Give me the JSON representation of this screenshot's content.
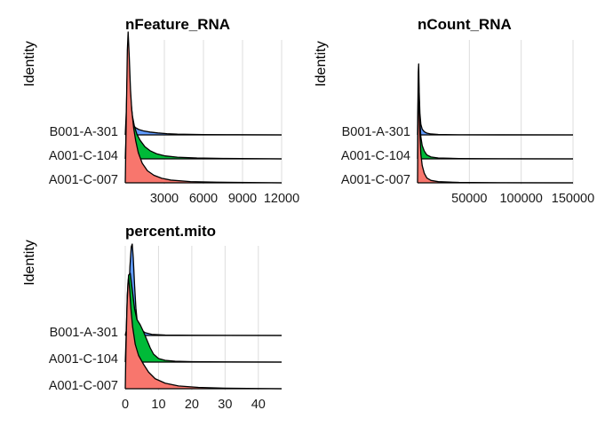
{
  "chart_data": [
    {
      "type": "ridgeline",
      "title": "nFeature_RNA",
      "ylabel": "Identity",
      "xlabel": "",
      "xlim": [
        0,
        12000
      ],
      "xticks": [
        3000,
        6000,
        9000,
        12000
      ],
      "tick_labels": [
        "3000",
        "6000",
        "9000",
        "12000"
      ],
      "grid": true,
      "categories": [
        "A001-C-007",
        "A001-C-104",
        "B001-A-301"
      ],
      "series": [
        {
          "category": "A001-C-007",
          "color": "#F8766D",
          "x": [
            0,
            80,
            160,
            220,
            300,
            400,
            500,
            650,
            800,
            1000,
            1300,
            1700,
            2200,
            2800,
            3500,
            5000,
            7000,
            9500,
            12000
          ],
          "density": [
            0,
            0.45,
            0.88,
            1.0,
            0.85,
            0.62,
            0.48,
            0.36,
            0.28,
            0.2,
            0.13,
            0.08,
            0.05,
            0.03,
            0.018,
            0.008,
            0.004,
            0.002,
            0.0
          ]
        },
        {
          "category": "A001-C-104",
          "color": "#00BA38",
          "x": [
            0,
            100,
            180,
            250,
            330,
            420,
            550,
            700,
            900,
            1150,
            1500,
            1900,
            2400,
            3000,
            4000,
            5500,
            7500,
            10000,
            12000
          ],
          "density": [
            0,
            0.4,
            0.9,
            1.0,
            0.8,
            0.58,
            0.42,
            0.32,
            0.24,
            0.18,
            0.12,
            0.08,
            0.05,
            0.03,
            0.016,
            0.008,
            0.004,
            0.002,
            0.0
          ]
        },
        {
          "category": "B001-A-301",
          "color": "#619CFF",
          "x": [
            0,
            90,
            170,
            240,
            300,
            380,
            480,
            620,
            800,
            1050,
            1400,
            1900,
            2500,
            3200,
            4000,
            6000,
            8500,
            12000
          ],
          "density": [
            0,
            0.3,
            0.8,
            1.0,
            0.55,
            0.28,
            0.16,
            0.11,
            0.08,
            0.06,
            0.045,
            0.032,
            0.022,
            0.014,
            0.008,
            0.004,
            0.002,
            0.0
          ]
        }
      ]
    },
    {
      "type": "ridgeline",
      "title": "nCount_RNA",
      "ylabel": "Identity",
      "xlabel": "",
      "xlim": [
        0,
        150000
      ],
      "xticks": [
        50000,
        100000,
        150000
      ],
      "tick_labels": [
        "50000",
        "100000",
        "150000"
      ],
      "grid": true,
      "categories": [
        "A001-C-007",
        "A001-C-104",
        "B001-A-301"
      ],
      "series": [
        {
          "category": "A001-C-007",
          "color": "#F8766D",
          "x": [
            0,
            300,
            700,
            1100,
            1600,
            2300,
            3200,
            4500,
            6500,
            9000,
            13000,
            20000,
            40000,
            80000,
            150000
          ],
          "density": [
            0,
            0.5,
            0.92,
            1.0,
            0.78,
            0.5,
            0.3,
            0.18,
            0.1,
            0.05,
            0.025,
            0.012,
            0.004,
            0.001,
            0.0
          ]
        },
        {
          "category": "A001-C-104",
          "color": "#00BA38",
          "x": [
            0,
            300,
            700,
            1100,
            1600,
            2300,
            3200,
            4500,
            6500,
            9000,
            13000,
            20000,
            40000,
            80000,
            150000
          ],
          "density": [
            0,
            0.45,
            0.9,
            1.0,
            0.76,
            0.48,
            0.28,
            0.17,
            0.1,
            0.05,
            0.024,
            0.011,
            0.004,
            0.001,
            0.0
          ]
        },
        {
          "category": "B001-A-301",
          "color": "#619CFF",
          "x": [
            0,
            300,
            700,
            1100,
            1600,
            2300,
            3200,
            4500,
            6500,
            9000,
            13000,
            20000,
            40000,
            80000,
            150000
          ],
          "density": [
            0,
            0.4,
            0.88,
            1.0,
            0.6,
            0.3,
            0.15,
            0.08,
            0.045,
            0.025,
            0.013,
            0.006,
            0.002,
            0.001,
            0.0
          ]
        }
      ]
    },
    {
      "type": "ridgeline",
      "title": "percent.mito",
      "ylabel": "Identity",
      "xlabel": "",
      "xlim": [
        0,
        47
      ],
      "xticks": [
        0,
        10,
        20,
        30,
        40
      ],
      "tick_labels": [
        "0",
        "10",
        "20",
        "30",
        "40"
      ],
      "grid": true,
      "categories": [
        "A001-C-007",
        "A001-C-104",
        "B001-A-301"
      ],
      "series": [
        {
          "category": "A001-C-007",
          "color": "#F8766D",
          "x": [
            0,
            0.2,
            0.5,
            0.8,
            1.0,
            1.3,
            1.7,
            2.2,
            3.0,
            4.0,
            5.5,
            7.0,
            9.0,
            12,
            16,
            22,
            30,
            40,
            47
          ],
          "density": [
            0,
            0.35,
            0.72,
            0.95,
            1.0,
            0.9,
            0.72,
            0.56,
            0.4,
            0.3,
            0.22,
            0.15,
            0.09,
            0.05,
            0.025,
            0.012,
            0.005,
            0.002,
            0.0
          ]
        },
        {
          "category": "A001-C-104",
          "color": "#00BA38",
          "x": [
            0,
            0.3,
            0.6,
            1.0,
            1.5,
            2.1,
            2.8,
            3.5,
            4.5,
            5.5,
            6.5,
            7.5,
            8.5,
            10,
            12,
            15,
            20,
            30,
            47
          ],
          "density": [
            0,
            0.3,
            0.75,
            0.98,
            1.0,
            0.82,
            0.6,
            0.48,
            0.42,
            0.34,
            0.25,
            0.16,
            0.09,
            0.04,
            0.02,
            0.01,
            0.005,
            0.002,
            0.0
          ]
        },
        {
          "category": "B001-A-301",
          "color": "#619CFF",
          "x": [
            0,
            0.6,
            1.0,
            1.4,
            1.8,
            2.1,
            2.4,
            2.8,
            3.2,
            3.6,
            4.0,
            4.6,
            5.2,
            6.0,
            8.0,
            12,
            20,
            47
          ],
          "density": [
            0,
            0.1,
            0.35,
            0.75,
            0.97,
            1.0,
            0.85,
            0.55,
            0.3,
            0.15,
            0.09,
            0.07,
            0.05,
            0.03,
            0.012,
            0.005,
            0.002,
            0.0
          ]
        }
      ]
    }
  ]
}
